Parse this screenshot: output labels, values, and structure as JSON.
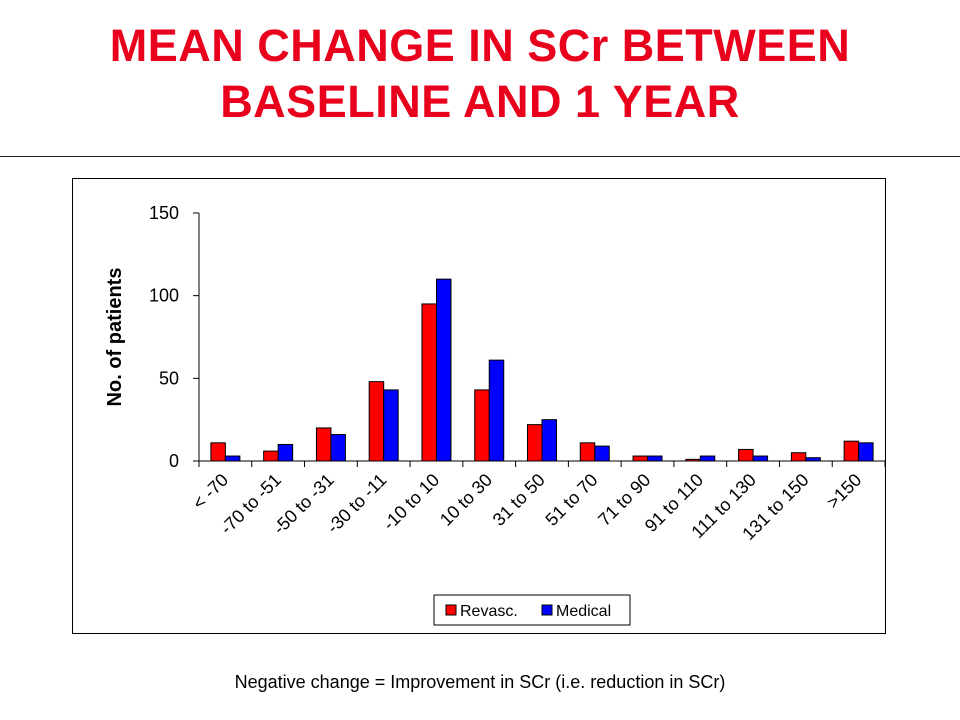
{
  "slide": {
    "title_line1": "MEAN CHANGE IN SCr BETWEEN",
    "title_line2": "BASELINE AND 1 YEAR",
    "footnote": "Negative change = Improvement in SCr (i.e. reduction in SCr)"
  },
  "colors": {
    "title": "#e8001c",
    "revasc": "#ff0000",
    "medical": "#0000ff"
  },
  "chart_data": {
    "type": "bar",
    "title": "",
    "xlabel": "",
    "ylabel": "No. of patients",
    "ylim": [
      0,
      150
    ],
    "yticks": [
      0,
      50,
      100,
      150
    ],
    "grid": false,
    "legend_position": "bottom-right",
    "categories": [
      "< -70",
      "-70 to -51",
      "-50 to -31",
      "-30 to -11",
      "-10 to 10",
      "10 to 30",
      "31 to 50",
      "51 to 70",
      "71 to 90",
      "91 to 110",
      "111 to 130",
      "131 to 150",
      ">150"
    ],
    "series": [
      {
        "name": "Revasc.",
        "color": "#ff0000",
        "values": [
          11,
          6,
          20,
          48,
          95,
          43,
          22,
          11,
          3,
          1,
          7,
          5,
          12
        ]
      },
      {
        "name": "Medical",
        "color": "#0000ff",
        "values": [
          3,
          10,
          16,
          43,
          110,
          61,
          25,
          9,
          3,
          3,
          3,
          2,
          11
        ]
      }
    ]
  }
}
